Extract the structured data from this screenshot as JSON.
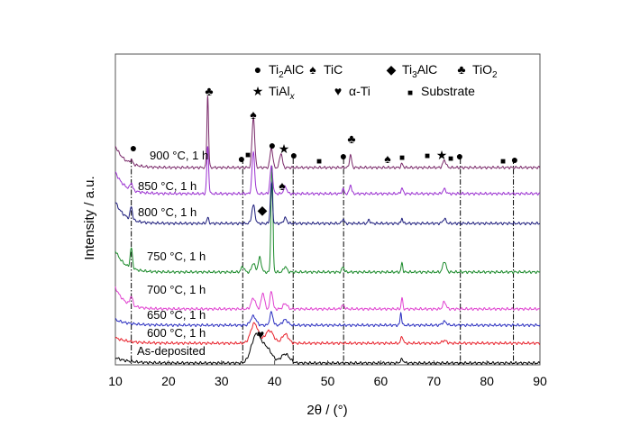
{
  "chart_data": {
    "type": "line",
    "xlabel": "2θ / (°)",
    "ylabel": "Intensity / a.u.",
    "xlim": [
      10,
      90
    ],
    "xticks": [
      10,
      20,
      30,
      40,
      50,
      60,
      70,
      80,
      90
    ],
    "yticks": false,
    "grid": false,
    "series": [
      {
        "name": "As-deposited",
        "color": "#000000"
      },
      {
        "name": "600 °C, 1 h",
        "color": "#e8202a"
      },
      {
        "name": "650 °C, 1 h",
        "color": "#2a2ec0"
      },
      {
        "name": "700 °C, 1 h",
        "color": "#e040d0"
      },
      {
        "name": "750 °C, 1 h",
        "color": "#1a8a2a"
      },
      {
        "name": "800 °C, 1 h",
        "color": "#1c1c7c"
      },
      {
        "name": "850 °C, 1 h",
        "color": "#9a30d0"
      },
      {
        "name": "900 °C, 1 h",
        "color": "#7a2a6a"
      }
    ],
    "legend": [
      {
        "symbol": "●",
        "name": "Ti",
        "sub": "2",
        "rest": "AlC"
      },
      {
        "symbol": "♠",
        "name": "TiC",
        "sub": "",
        "rest": ""
      },
      {
        "symbol": "◆",
        "name": "Ti",
        "sub": "3",
        "rest": "AlC"
      },
      {
        "symbol": "♣",
        "name": "TiO",
        "sub": "2",
        "rest": ""
      },
      {
        "symbol": "★",
        "name": "TiAl",
        "sub": "x",
        "rest": ""
      },
      {
        "symbol": "♥",
        "name": "α-Ti",
        "sub": "",
        "rest": ""
      },
      {
        "symbol": "■",
        "name": "Substrate",
        "sub": "",
        "rest": ""
      }
    ],
    "reference_lines_x": [
      13.0,
      34.0,
      43.5,
      53.0,
      75.0,
      85.0
    ],
    "phase_markers": [
      {
        "phase": "Ti2AlC",
        "x": [
          13.0,
          33.8,
          39.4,
          43.4,
          52.9,
          74.9,
          85.3
        ]
      },
      {
        "phase": "TiC",
        "x": [
          36.0,
          42.0,
          61.0
        ]
      },
      {
        "phase": "Ti3AlC",
        "x": [
          39.0
        ]
      },
      {
        "phase": "TiO2",
        "x": [
          27.4,
          54.3
        ]
      },
      {
        "phase": "TiAlx",
        "x": [
          41.2,
          72.0
        ]
      },
      {
        "phase": "α-Ti",
        "x": [
          36.2
        ]
      },
      {
        "phase": "Substrate",
        "x": [
          34.8,
          48.0,
          57.8,
          64.0,
          69.0,
          73.5,
          83.0
        ]
      }
    ]
  }
}
